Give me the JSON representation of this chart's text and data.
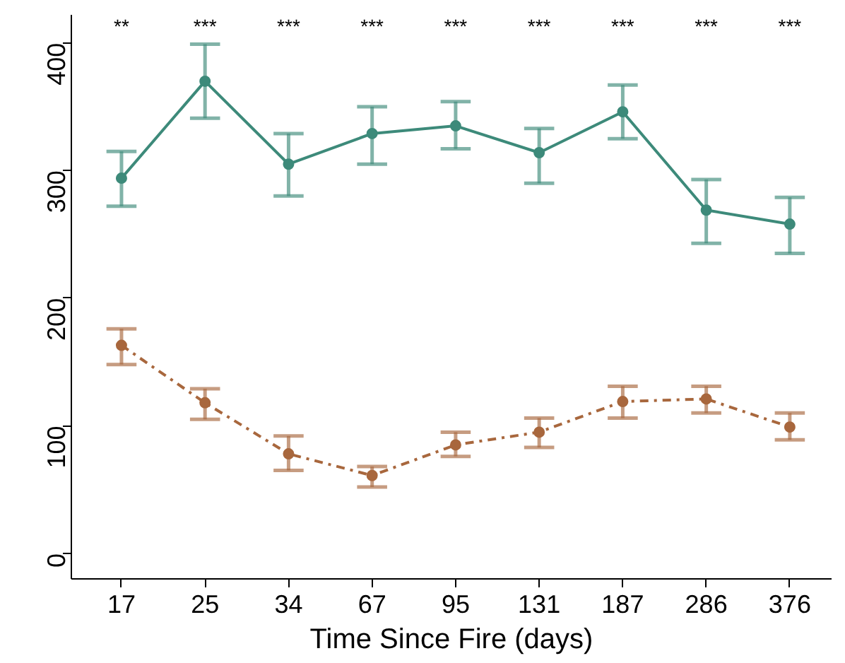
{
  "chart_data": {
    "type": "line",
    "xlabel": "Time Since Fire (days)",
    "categories": [
      "17",
      "25",
      "34",
      "67",
      "95",
      "131",
      "187",
      "286",
      "376"
    ],
    "series": [
      {
        "color": "#3d8a7a",
        "line_style": "solid",
        "values": [
          294,
          370,
          305,
          329,
          335,
          314,
          346,
          269,
          258
        ],
        "errors": [
          [
            272,
            315
          ],
          [
            341,
            399
          ],
          [
            280,
            329
          ],
          [
            305,
            350
          ],
          [
            317,
            354
          ],
          [
            290,
            333
          ],
          [
            325,
            367
          ],
          [
            243,
            293
          ],
          [
            235,
            279
          ]
        ]
      },
      {
        "color": "#a8673d",
        "line_style": "dashed",
        "values": [
          163,
          118,
          78,
          61,
          85,
          95,
          119,
          121,
          99
        ],
        "errors": [
          [
            148,
            176
          ],
          [
            105,
            129
          ],
          [
            65,
            92
          ],
          [
            52,
            68
          ],
          [
            76,
            95
          ],
          [
            83,
            106
          ],
          [
            106,
            131
          ],
          [
            110,
            131
          ],
          [
            89,
            110
          ]
        ]
      }
    ],
    "ylim": [
      -20,
      422
    ],
    "yticks": [
      0,
      100,
      200,
      300,
      400
    ],
    "grid": false,
    "marker": "circle",
    "annotations": [
      "**",
      "***",
      "***",
      "***",
      "***",
      "***",
      "***",
      "***",
      "***"
    ]
  }
}
